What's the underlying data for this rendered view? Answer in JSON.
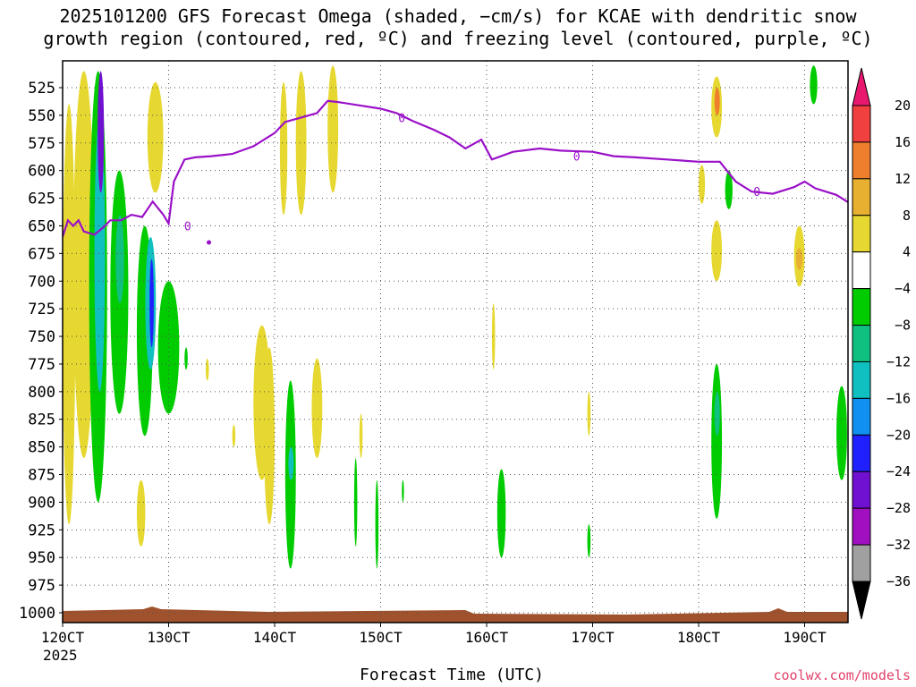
{
  "title_line1": "2025101200 GFS Forecast Omega (shaded, −cm/s) for KCAE with dendritic snow",
  "title_line2": "growth region (contoured, red, ºC) and freezing level (contoured, purple, ºC)",
  "credit": "coolwx.com/models",
  "chart_data": {
    "type": "heatmap",
    "xlabel": "Forecast Time (UTC)",
    "ylabel": "Pressure (hPa)",
    "x_range_days": [
      12,
      19.55
    ],
    "x_ticks": [
      {
        "day": 12,
        "label": "120CT",
        "sublabel": "2025"
      },
      {
        "day": 13,
        "label": "130CT"
      },
      {
        "day": 14,
        "label": "140CT"
      },
      {
        "day": 15,
        "label": "150CT"
      },
      {
        "day": 16,
        "label": "160CT"
      },
      {
        "day": 17,
        "label": "170CT"
      },
      {
        "day": 18,
        "label": "180CT"
      },
      {
        "day": 19,
        "label": "190CT"
      }
    ],
    "y_range_hpa": [
      1012,
      500
    ],
    "y_ticks": [
      525,
      550,
      575,
      600,
      625,
      650,
      675,
      700,
      725,
      750,
      775,
      800,
      825,
      850,
      875,
      900,
      925,
      950,
      975,
      1000
    ],
    "colorbar": {
      "labels": [
        "20",
        "16",
        "12",
        "8",
        "4",
        "−4",
        "−8",
        "−12",
        "−16",
        "−20",
        "−24",
        "−28",
        "−32",
        "−36"
      ],
      "bins": [
        {
          "min": 20,
          "max": 24,
          "color": "#e8186e"
        },
        {
          "min": 16,
          "max": 20,
          "color": "#f04040"
        },
        {
          "min": 12,
          "max": 16,
          "color": "#ee7f2c"
        },
        {
          "min": 8,
          "max": 12,
          "color": "#e8b030"
        },
        {
          "min": 4,
          "max": 8,
          "color": "#e6d830"
        },
        {
          "min": -4,
          "max": 4,
          "color": "#ffffff"
        },
        {
          "min": -8,
          "max": -4,
          "color": "#00cc00"
        },
        {
          "min": -12,
          "max": -8,
          "color": "#10c080"
        },
        {
          "min": -16,
          "max": -12,
          "color": "#10c0c0"
        },
        {
          "min": -20,
          "max": -16,
          "color": "#1090f0"
        },
        {
          "min": -24,
          "max": -20,
          "color": "#2020ff"
        },
        {
          "min": -28,
          "max": -24,
          "color": "#7010d0"
        },
        {
          "min": -32,
          "max": -28,
          "color": "#a010c0"
        },
        {
          "min": -36,
          "max": -32,
          "color": "#a0a0a0"
        }
      ]
    },
    "freezing_level_label": "0",
    "freezing_level_hpa": [
      [
        12.0,
        660
      ],
      [
        12.05,
        645
      ],
      [
        12.1,
        650
      ],
      [
        12.15,
        645
      ],
      [
        12.2,
        655
      ],
      [
        12.3,
        658
      ],
      [
        12.4,
        650
      ],
      [
        12.45,
        645
      ],
      [
        12.55,
        645
      ],
      [
        12.65,
        640
      ],
      [
        12.75,
        642
      ],
      [
        12.85,
        628
      ],
      [
        12.95,
        640
      ],
      [
        13.0,
        648
      ],
      [
        13.05,
        610
      ],
      [
        13.15,
        590
      ],
      [
        13.25,
        588
      ],
      [
        13.4,
        587
      ],
      [
        13.6,
        585
      ],
      [
        13.8,
        578
      ],
      [
        14.0,
        566
      ],
      [
        14.1,
        556
      ],
      [
        14.25,
        552
      ],
      [
        14.4,
        548
      ],
      [
        14.5,
        537
      ],
      [
        14.6,
        538
      ],
      [
        14.8,
        541
      ],
      [
        15.0,
        544
      ],
      [
        15.15,
        548
      ],
      [
        15.3,
        555
      ],
      [
        15.5,
        563
      ],
      [
        15.65,
        570
      ],
      [
        15.8,
        580
      ],
      [
        15.95,
        572
      ],
      [
        16.05,
        590
      ],
      [
        16.25,
        583
      ],
      [
        16.5,
        580
      ],
      [
        16.7,
        582
      ],
      [
        17.0,
        583
      ],
      [
        17.2,
        587
      ],
      [
        17.4,
        588
      ],
      [
        17.7,
        590
      ],
      [
        18.0,
        592
      ],
      [
        18.2,
        592
      ],
      [
        18.35,
        610
      ],
      [
        18.5,
        619
      ],
      [
        18.7,
        621
      ],
      [
        18.9,
        615
      ],
      [
        19.0,
        610
      ],
      [
        19.1,
        616
      ],
      [
        19.3,
        622
      ],
      [
        19.4,
        628
      ],
      [
        19.55,
        632
      ]
    ],
    "omega_regions": [
      {
        "t0": 12.0,
        "t1": 12.12,
        "p0": 540,
        "p1": 920,
        "value": 6
      },
      {
        "t0": 12.1,
        "t1": 12.3,
        "p0": 510,
        "p1": 860,
        "value": 7
      },
      {
        "t0": 12.25,
        "t1": 12.42,
        "p0": 510,
        "p1": 900,
        "value": -6
      },
      {
        "t0": 12.3,
        "t1": 12.4,
        "p0": 550,
        "p1": 800,
        "value": -14
      },
      {
        "t0": 12.33,
        "t1": 12.39,
        "p0": 510,
        "p1": 620,
        "value": -25
      },
      {
        "t0": 12.45,
        "t1": 12.62,
        "p0": 600,
        "p1": 820,
        "value": -6
      },
      {
        "t0": 12.5,
        "t1": 12.58,
        "p0": 640,
        "p1": 720,
        "value": -10
      },
      {
        "t0": 12.7,
        "t1": 12.85,
        "p0": 650,
        "p1": 840,
        "value": -6
      },
      {
        "t0": 12.78,
        "t1": 12.88,
        "p0": 660,
        "p1": 780,
        "value": -14
      },
      {
        "t0": 12.82,
        "t1": 12.86,
        "p0": 680,
        "p1": 760,
        "value": -22
      },
      {
        "t0": 12.9,
        "t1": 13.1,
        "p0": 700,
        "p1": 820,
        "value": -6
      },
      {
        "t0": 12.8,
        "t1": 12.95,
        "p0": 520,
        "p1": 620,
        "value": 6
      },
      {
        "t0": 12.7,
        "t1": 12.78,
        "p0": 880,
        "p1": 940,
        "value": 6
      },
      {
        "t0": 13.15,
        "t1": 13.18,
        "p0": 760,
        "p1": 780,
        "value": -6
      },
      {
        "t0": 13.35,
        "t1": 13.38,
        "p0": 770,
        "p1": 790,
        "value": 5
      },
      {
        "t0": 13.6,
        "t1": 13.63,
        "p0": 830,
        "p1": 850,
        "value": 5
      },
      {
        "t0": 13.8,
        "t1": 13.96,
        "p0": 740,
        "p1": 880,
        "value": 6
      },
      {
        "t0": 13.9,
        "t1": 14.0,
        "p0": 760,
        "p1": 920,
        "value": 5
      },
      {
        "t0": 14.05,
        "t1": 14.12,
        "p0": 520,
        "p1": 640,
        "value": 6
      },
      {
        "t0": 14.1,
        "t1": 14.2,
        "p0": 790,
        "p1": 960,
        "value": -6
      },
      {
        "t0": 14.13,
        "t1": 14.18,
        "p0": 850,
        "p1": 880,
        "value": -14
      },
      {
        "t0": 14.2,
        "t1": 14.3,
        "p0": 510,
        "p1": 640,
        "value": 5
      },
      {
        "t0": 14.35,
        "t1": 14.45,
        "p0": 770,
        "p1": 860,
        "value": 5
      },
      {
        "t0": 14.5,
        "t1": 14.6,
        "p0": 505,
        "p1": 620,
        "value": 5
      },
      {
        "t0": 14.75,
        "t1": 14.78,
        "p0": 860,
        "p1": 940,
        "value": -6
      },
      {
        "t0": 14.8,
        "t1": 14.83,
        "p0": 820,
        "p1": 860,
        "value": 5
      },
      {
        "t0": 14.95,
        "t1": 14.98,
        "p0": 880,
        "p1": 960,
        "value": -6
      },
      {
        "t0": 15.2,
        "t1": 15.22,
        "p0": 880,
        "p1": 900,
        "value": -6
      },
      {
        "t0": 16.05,
        "t1": 16.08,
        "p0": 720,
        "p1": 780,
        "value": 5
      },
      {
        "t0": 16.1,
        "t1": 16.18,
        "p0": 870,
        "p1": 950,
        "value": -6
      },
      {
        "t0": 16.95,
        "t1": 16.98,
        "p0": 800,
        "p1": 840,
        "value": 5
      },
      {
        "t0": 16.95,
        "t1": 16.98,
        "p0": 920,
        "p1": 950,
        "value": -6
      },
      {
        "t0": 18.0,
        "t1": 18.06,
        "p0": 595,
        "p1": 630,
        "value": 6
      },
      {
        "t0": 18.12,
        "t1": 18.22,
        "p0": 515,
        "p1": 570,
        "value": 6
      },
      {
        "t0": 18.15,
        "t1": 18.2,
        "p0": 525,
        "p1": 550,
        "value": 12
      },
      {
        "t0": 18.25,
        "t1": 18.32,
        "p0": 600,
        "p1": 635,
        "value": -6
      },
      {
        "t0": 18.12,
        "t1": 18.22,
        "p0": 645,
        "p1": 700,
        "value": 6
      },
      {
        "t0": 18.12,
        "t1": 18.22,
        "p0": 775,
        "p1": 915,
        "value": -6
      },
      {
        "t0": 18.15,
        "t1": 18.2,
        "p0": 800,
        "p1": 840,
        "value": -10
      },
      {
        "t0": 18.9,
        "t1": 19.0,
        "p0": 650,
        "p1": 705,
        "value": 6
      },
      {
        "t0": 18.92,
        "t1": 18.98,
        "p0": 670,
        "p1": 690,
        "value": 9
      },
      {
        "t0": 19.05,
        "t1": 19.12,
        "p0": 505,
        "p1": 540,
        "value": -6
      },
      {
        "t0": 19.3,
        "t1": 19.4,
        "p0": 795,
        "p1": 880,
        "value": -6
      },
      {
        "t0": 19.5,
        "t1": 19.56,
        "p0": 520,
        "p1": 570,
        "value": 6
      },
      {
        "t0": 19.5,
        "t1": 19.56,
        "p0": 718,
        "p1": 722,
        "value": 6
      }
    ],
    "terrain_color": "#a0522d"
  }
}
